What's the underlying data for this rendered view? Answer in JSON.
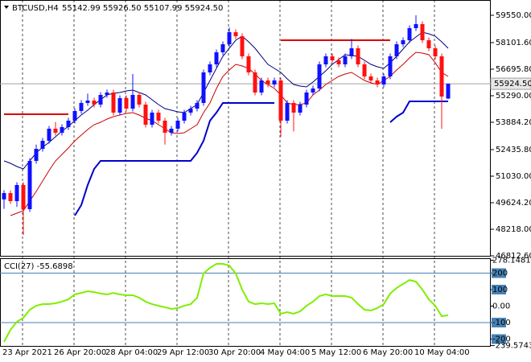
{
  "chart_data": [
    {
      "type": "candlestick",
      "title": "BTCUSD,H4",
      "ohlc_text": "55142.99 55926.50 55107.99 55924.50",
      "up_color": "#1010ff",
      "down_color": "#ff1010",
      "categories": [
        "23 Apr 2021",
        null,
        null,
        null,
        null,
        null,
        null,
        null,
        "26 Apr 20:00",
        null,
        null,
        null,
        null,
        null,
        null,
        null,
        "28 Apr 04:00",
        null,
        null,
        null,
        null,
        null,
        null,
        null,
        "29 Apr 12:00",
        null,
        null,
        null,
        null,
        null,
        null,
        null,
        "30 Apr 20:00",
        null,
        null,
        null,
        null,
        null,
        null,
        null,
        "4 May 04:00",
        null,
        null,
        null,
        null,
        null,
        null,
        null,
        "5 May 12:00",
        null,
        null,
        null,
        null,
        null,
        null,
        null,
        "6 May 20:00",
        null,
        null,
        null,
        null,
        null,
        null,
        null,
        "10 May 04:00",
        null,
        null,
        null,
        null,
        null
      ],
      "open": [
        49800,
        50135,
        49709,
        50561,
        49283,
        51839,
        52478,
        52904,
        53543,
        53330,
        53629,
        53969,
        54481,
        54907,
        55034,
        54821,
        55333,
        55460,
        54395,
        55162,
        54608,
        55333,
        54821,
        53756,
        54395,
        53969,
        53330,
        53543,
        53969,
        54395,
        54608,
        54907,
        56525,
        56951,
        57590,
        58016,
        58655,
        58442,
        57377,
        56525,
        55460,
        56099,
        55886,
        56099,
        53969,
        54907,
        54395,
        54821,
        55460,
        55673,
        56951,
        57377,
        57164,
        56951,
        57377,
        57803,
        56951,
        56312,
        56099,
        55886,
        56312,
        57377,
        58016,
        58229,
        58868,
        59081,
        58229,
        57803,
        57377,
        55142.99
      ],
      "high": [
        50285,
        50285,
        50711,
        50711,
        51989,
        52700,
        53054,
        53693,
        53900,
        53779,
        54119,
        54631,
        55057,
        55400,
        55184,
        55483,
        55610,
        55610,
        55312,
        55312,
        56440,
        55483,
        54971,
        54545,
        54545,
        54119,
        53693,
        54119,
        54545,
        54758,
        55057,
        56675,
        57101,
        57740,
        58166,
        58900,
        58805,
        58592,
        57527,
        56675,
        56249,
        56249,
        56249,
        56249,
        55057,
        55057,
        54971,
        55610,
        55823,
        57101,
        57527,
        57527,
        57314,
        57527,
        58300,
        57953,
        57101,
        56462,
        56249,
        56462,
        57527,
        58166,
        58379,
        59018,
        59550,
        59231,
        58379,
        57953,
        57527,
        55926.5
      ],
      "low": [
        49300,
        49559,
        49400,
        47920,
        49133,
        51689,
        52328,
        52754,
        53180,
        53180,
        53479,
        53819,
        54331,
        54757,
        54671,
        54671,
        55183,
        54245,
        54245,
        54458,
        54458,
        54671,
        53606,
        53606,
        53819,
        52700,
        53180,
        53393,
        53819,
        54245,
        54458,
        54757,
        56375,
        56801,
        57440,
        57866,
        58292,
        57227,
        56375,
        55310,
        55310,
        55736,
        55736,
        53120,
        53819,
        53400,
        54245,
        54671,
        55310,
        55523,
        56801,
        57014,
        56801,
        56801,
        57227,
        56801,
        56162,
        55949,
        55736,
        55736,
        56162,
        57227,
        57866,
        58079,
        58718,
        58079,
        57653,
        57227,
        53543,
        55107.99
      ],
      "close": [
        50135,
        49709,
        50561,
        49283,
        51839,
        52478,
        52904,
        53543,
        53330,
        53629,
        53969,
        54481,
        54907,
        55034,
        54821,
        55333,
        55460,
        54395,
        55162,
        54608,
        55333,
        54821,
        53756,
        54395,
        53969,
        53330,
        53543,
        53969,
        54395,
        54608,
        54907,
        56525,
        56951,
        57590,
        58016,
        58655,
        58442,
        57377,
        56525,
        55460,
        56099,
        55886,
        56099,
        53969,
        54907,
        54395,
        54821,
        55460,
        55673,
        56951,
        57377,
        57164,
        56951,
        57377,
        57803,
        56951,
        56312,
        56099,
        55886,
        56312,
        57377,
        58016,
        58229,
        58868,
        59081,
        58229,
        57803,
        57377,
        55247,
        55924.5
      ],
      "series": [
        {
          "color": "#000080",
          "width": 1,
          "values": [
            51839,
            51712,
            51541,
            51413,
            51839,
            52265,
            52564,
            52819,
            53117,
            53416,
            53671,
            53969,
            54268,
            54523,
            54821,
            55077,
            55333,
            55418,
            55460,
            55546,
            55589,
            55460,
            55333,
            55077,
            54821,
            54608,
            54523,
            54438,
            54395,
            54608,
            54821,
            55460,
            56099,
            56738,
            57377,
            57803,
            58229,
            58442,
            58144,
            57803,
            57377,
            56951,
            56738,
            56525,
            56184,
            55886,
            55801,
            55759,
            56014,
            56312,
            56610,
            56951,
            57207,
            57463,
            57420,
            57377,
            57164,
            56951,
            56823,
            56738,
            57037,
            57377,
            57761,
            58144,
            58400,
            58655,
            58570,
            58442,
            58144,
            57803
          ]
        },
        {
          "color": "#cc0000",
          "width": 1,
          "values": [
            null,
            48943,
            49070,
            49198,
            49709,
            50221,
            50774,
            51328,
            51839,
            52180,
            52521,
            52904,
            53202,
            53501,
            53756,
            53884,
            54055,
            54183,
            54268,
            54353,
            54395,
            54268,
            54097,
            53969,
            53756,
            53543,
            53330,
            53288,
            53330,
            53543,
            53756,
            54395,
            54907,
            55673,
            56312,
            56653,
            56951,
            56866,
            56738,
            56440,
            56099,
            55886,
            55673,
            55333,
            54907,
            54821,
            54821,
            54907,
            55333,
            55589,
            55886,
            56099,
            56312,
            56440,
            56525,
            56312,
            56099,
            55972,
            55886,
            56099,
            56312,
            56653,
            56951,
            57292,
            57590,
            57548,
            57463,
            57037,
            56525,
            56312
          ]
        },
        {
          "color": "#0000cc",
          "width": 2,
          "values": [
            null,
            null,
            null,
            null,
            null,
            null,
            null,
            null,
            null,
            null,
            null,
            48943,
            49496,
            50561,
            51413,
            51839,
            51839,
            51839,
            51839,
            51839,
            51839,
            51839,
            51839,
            51839,
            51839,
            51839,
            51839,
            51839,
            51839,
            51839,
            52265,
            52904,
            53969,
            54395,
            54907,
            54907,
            54907,
            54907,
            54907,
            54907,
            54907,
            54907,
            54907,
            null,
            null,
            null,
            null,
            null,
            null,
            null,
            null,
            null,
            null,
            null,
            null,
            null,
            null,
            null,
            null,
            null,
            53884,
            54183,
            54395,
            54992,
            54992,
            54992,
            54992,
            54992,
            54992,
            54992
          ]
        },
        {
          "color": "#dd0000",
          "width": 2,
          "values": [
            54310,
            54310,
            54310,
            54310,
            54310,
            54310,
            54310,
            54310,
            54310,
            54310,
            54310,
            null,
            null,
            null,
            null,
            null,
            null,
            null,
            null,
            null,
            null,
            null,
            null,
            null,
            null,
            null,
            null,
            null,
            null,
            null,
            null,
            null,
            null,
            null,
            null,
            null,
            null,
            null,
            null,
            null,
            null,
            null,
            null,
            58229,
            58229,
            58229,
            58229,
            58229,
            58229,
            58229,
            58229,
            58229,
            58229,
            58229,
            58229,
            58229,
            58229,
            58229,
            58229,
            58229,
            58229,
            null,
            null,
            null,
            null,
            null,
            null,
            null,
            null,
            null
          ]
        }
      ],
      "current_price": {
        "value": 55924.5,
        "label": "55924.50"
      },
      "ylim": [
        46812.6,
        60359.4
      ],
      "yticks": [
        {
          "value": 59550,
          "label": "59550.00"
        },
        {
          "value": 58101.6,
          "label": "58101.60"
        },
        {
          "value": 56695.8,
          "label": "56695.80"
        },
        {
          "value": 55290,
          "label": "55290.00"
        },
        {
          "value": 53884.2,
          "label": "53884.20"
        },
        {
          "value": 52435.8,
          "label": "52435.80"
        },
        {
          "value": 51030,
          "label": "51030.00"
        },
        {
          "value": 49624.2,
          "label": "49624.20"
        },
        {
          "value": 48218,
          "label": "48218.00"
        },
        {
          "value": 46812.6,
          "label": "46812.60"
        }
      ]
    },
    {
      "type": "line",
      "title": "CCI(27) -55.6898",
      "color": "#80ee00",
      "values": [
        -217,
        -144,
        -95,
        -71,
        -22,
        2,
        12,
        12,
        17,
        27,
        41,
        71,
        80,
        90,
        85,
        76,
        71,
        80,
        71,
        66,
        66,
        51,
        27,
        12,
        2,
        -7,
        -17,
        -12,
        2,
        12,
        51,
        198,
        232,
        256,
        256,
        246,
        198,
        100,
        27,
        12,
        17,
        12,
        17,
        -46,
        -37,
        -46,
        -32,
        2,
        27,
        61,
        71,
        61,
        61,
        61,
        51,
        12,
        -22,
        -27,
        -12,
        12,
        76,
        110,
        134,
        158,
        148,
        100,
        41,
        2,
        -61,
        -55.6898
      ],
      "levels": [
        200,
        -100
      ],
      "ylim": [
        -239.5743,
        278.1481
      ],
      "yticks": [
        278.1481,
        200,
        100,
        {
          "value": 0,
          "label": "0.00"
        },
        -100,
        -200,
        -239.5743
      ]
    }
  ]
}
